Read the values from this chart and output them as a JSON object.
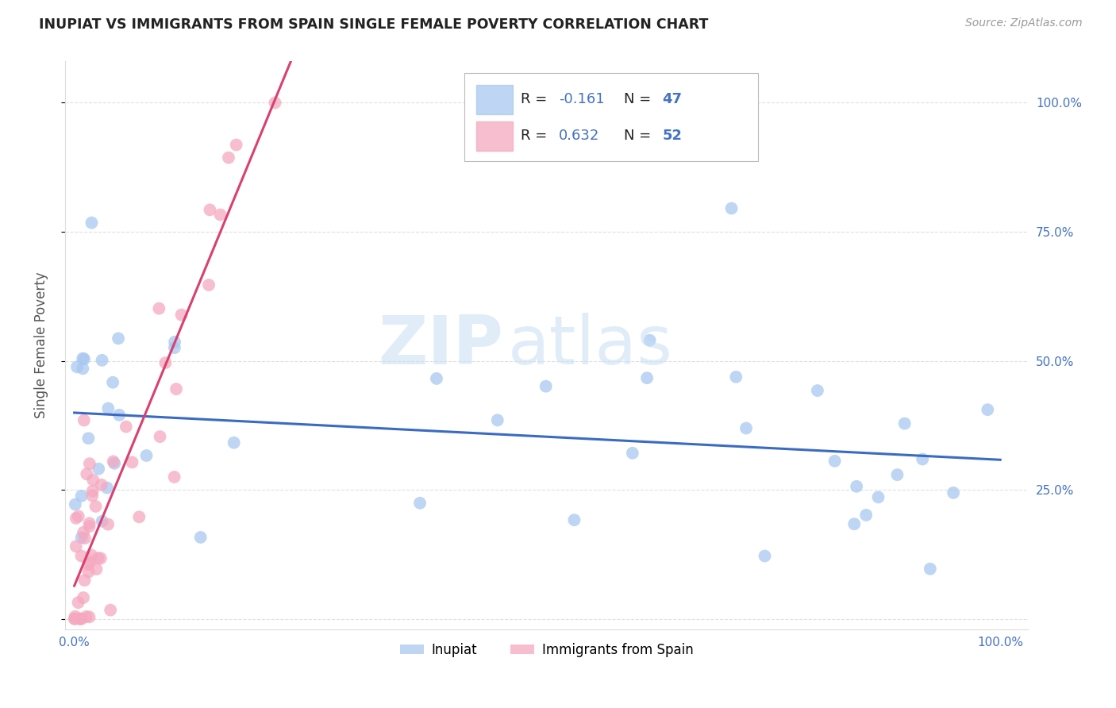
{
  "title": "INUPIAT VS IMMIGRANTS FROM SPAIN SINGLE FEMALE POVERTY CORRELATION CHART",
  "source": "Source: ZipAtlas.com",
  "ylabel": "Single Female Poverty",
  "legend_inupiat": "Inupiat",
  "legend_spain": "Immigrants from Spain",
  "r_inupiat": -0.161,
  "n_inupiat": 47,
  "r_spain": 0.632,
  "n_spain": 52,
  "inupiat_color": "#a8c8f0",
  "spain_color": "#f5a8c0",
  "inupiat_line_color": "#3a6bc4",
  "spain_line_color": "#d94070",
  "watermark_zip": "ZIP",
  "watermark_atlas": "atlas",
  "inupiat_seed": 42,
  "spain_seed": 99,
  "tick_color": "#4472c4",
  "legend_text_color": "#4472c4",
  "legend_r_color": "#222222"
}
